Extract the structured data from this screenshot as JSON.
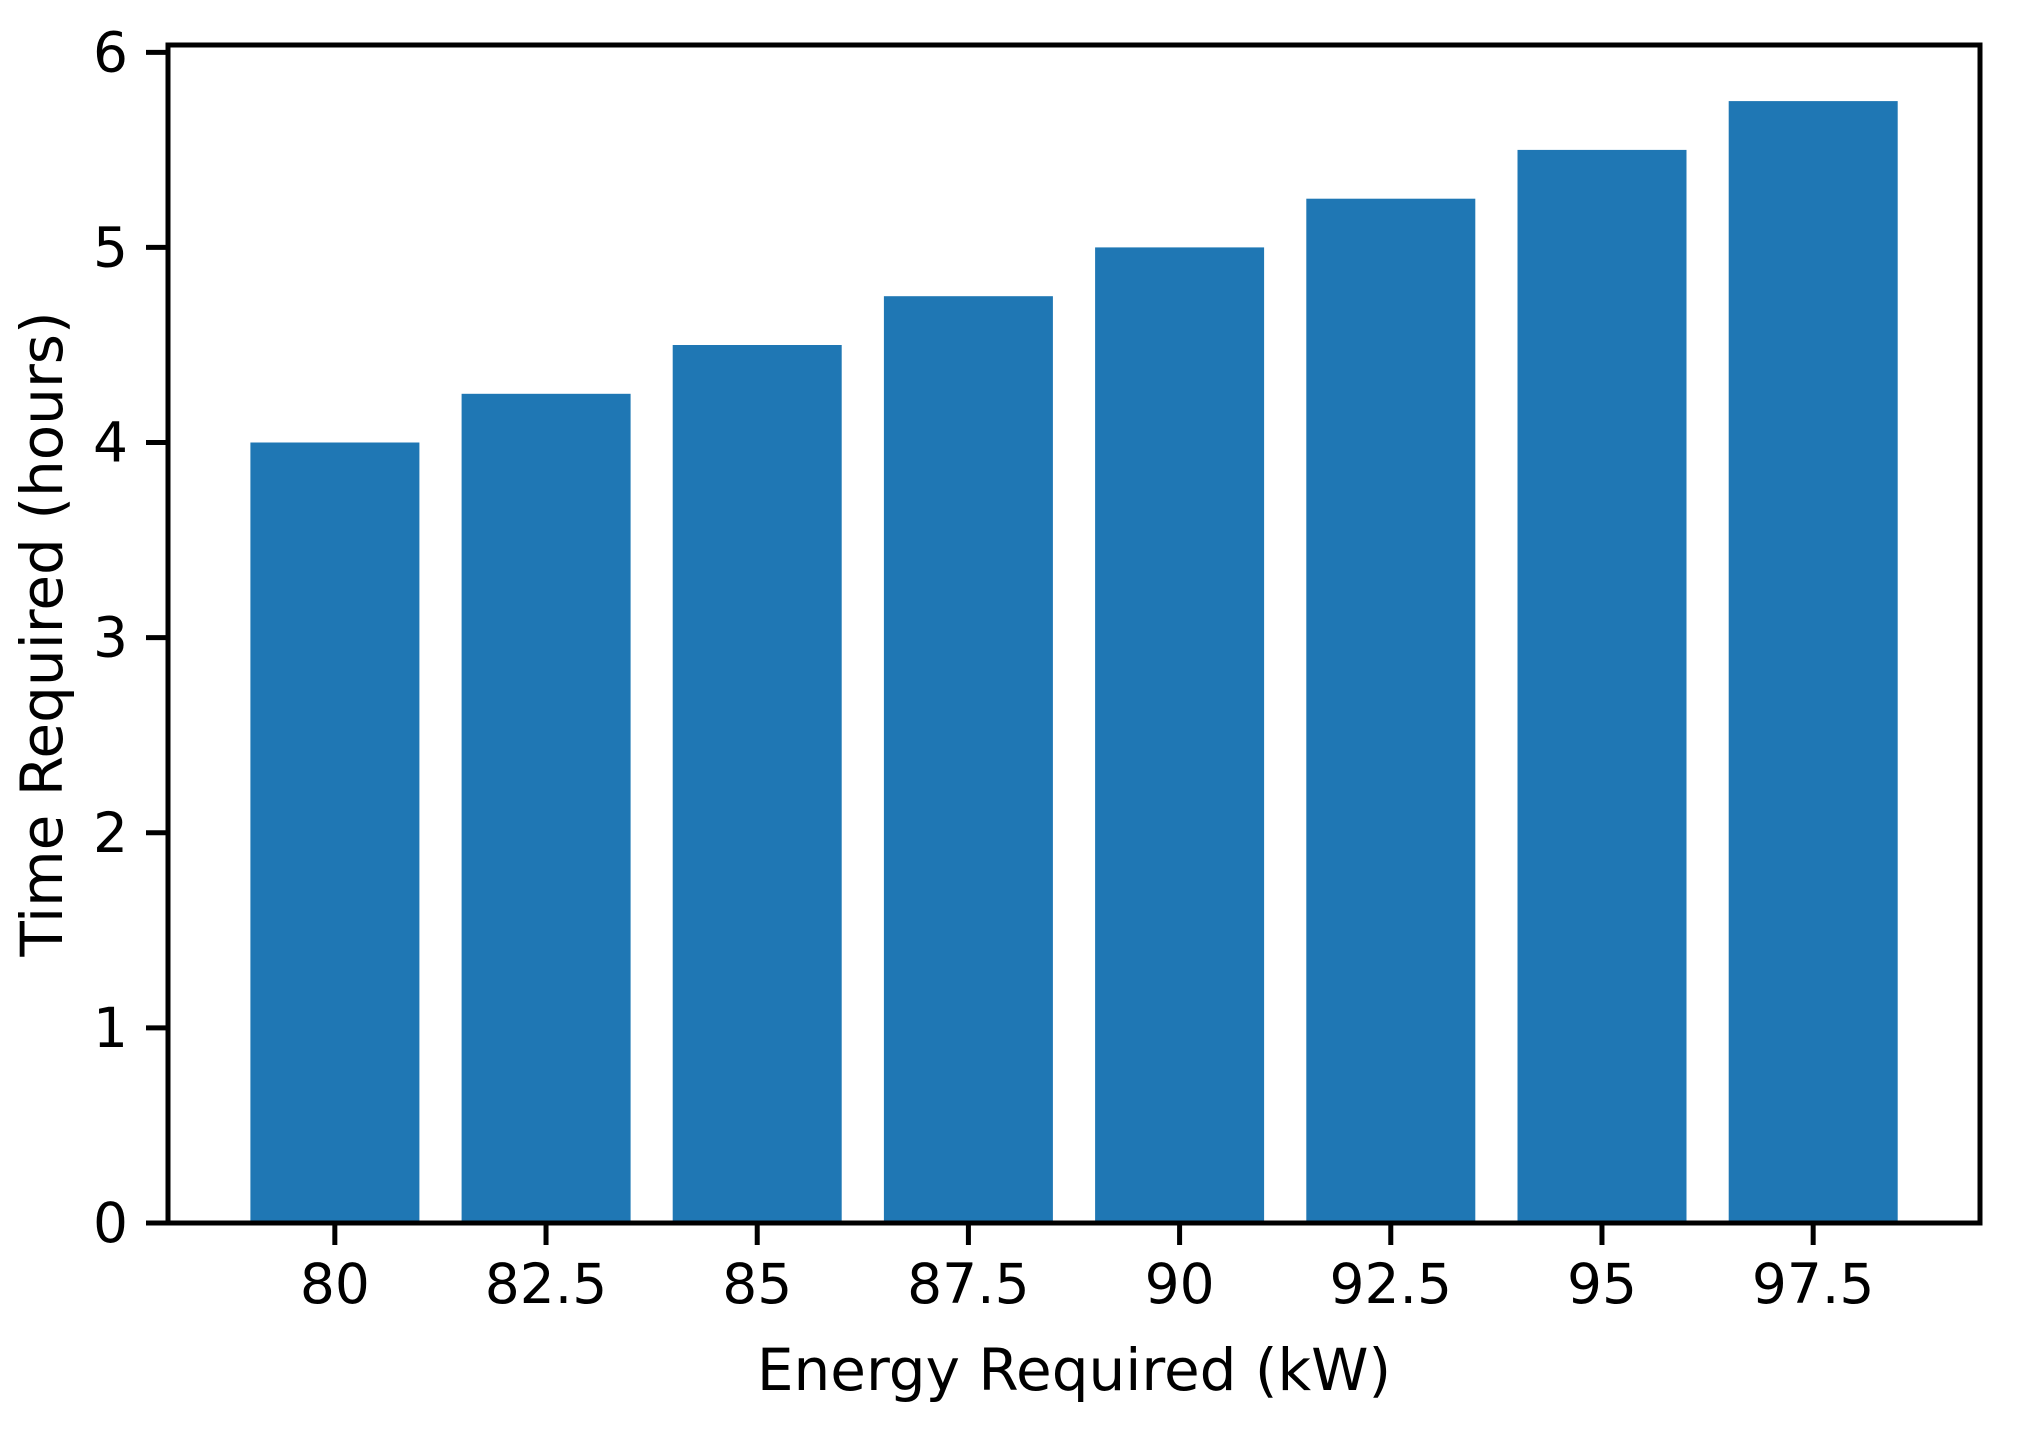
{
  "chart_data": {
    "type": "bar",
    "title": "",
    "xlabel": "Energy Required (kW)",
    "ylabel": "Time Required (hours)",
    "categories": [
      80,
      82.5,
      85,
      87.5,
      90,
      92.5,
      95,
      97.5
    ],
    "x_tick_labels": [
      "80",
      "82.5",
      "85",
      "87.5",
      "90",
      "92.5",
      "95",
      "97.5"
    ],
    "values": [
      4.0,
      4.25,
      4.5,
      4.75,
      5.0,
      5.25,
      5.5,
      5.75
    ],
    "y_ticks": [
      0,
      1,
      2,
      3,
      4,
      5,
      6
    ],
    "y_tick_labels": [
      "0",
      "1",
      "2",
      "3",
      "4",
      "5",
      "6"
    ],
    "xlim": [
      78.025,
      99.475
    ],
    "ylim": [
      0,
      6.0375
    ],
    "bar_width": 2.0,
    "grid": false,
    "legend": false,
    "colors": {
      "bar": "#1f77b4",
      "axis": "#000000",
      "text": "#000000",
      "background": "#ffffff"
    }
  }
}
